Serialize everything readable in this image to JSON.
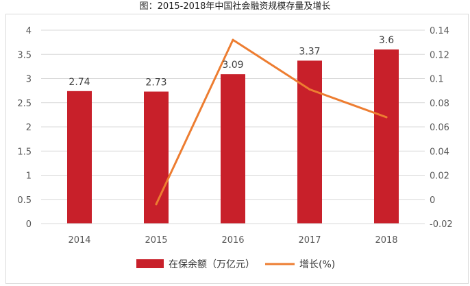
{
  "chart_data": {
    "type": "bar",
    "title": "图：2015-2018年中国社会融资规模存量及增长",
    "categories": [
      "2014",
      "2015",
      "2016",
      "2017",
      "2018"
    ],
    "series": [
      {
        "name": "在保余额（万亿元）",
        "type": "bar",
        "axis": "left",
        "values": [
          2.74,
          2.73,
          3.09,
          3.37,
          3.6
        ],
        "color": "#c8202a",
        "labels": [
          "2.74",
          "2.73",
          "3.09",
          "3.37",
          "3.6"
        ]
      },
      {
        "name": "增长(%)",
        "type": "line",
        "axis": "right",
        "values": [
          null,
          -0.004,
          0.132,
          0.091,
          0.068
        ],
        "color": "#ed7d31"
      }
    ],
    "y_left": {
      "min": 0,
      "max": 4,
      "ticks": [
        0,
        0.5,
        1,
        1.5,
        2,
        2.5,
        3,
        3.5,
        4
      ],
      "tick_labels": [
        "0",
        "0.5",
        "1",
        "1.5",
        "2",
        "2.5",
        "3",
        "3.5",
        "4"
      ]
    },
    "y_right": {
      "min": -0.02,
      "max": 0.14,
      "ticks": [
        -0.02,
        0,
        0.02,
        0.04,
        0.06,
        0.08,
        0.1,
        0.12,
        0.14
      ],
      "tick_labels": [
        "-0.02",
        "0",
        "0.02",
        "0.04",
        "0.06",
        "0.08",
        "0.1",
        "0.12",
        "0.14"
      ]
    },
    "grid": true,
    "legend": "bottom-center"
  }
}
